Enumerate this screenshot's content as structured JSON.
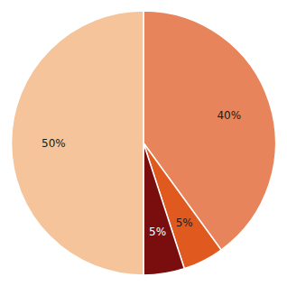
{
  "chart_data": {
    "type": "pie",
    "values": [
      40,
      5,
      5,
      50
    ],
    "value_labels": [
      "40%",
      "5%",
      "5%",
      "50%"
    ],
    "colors": [
      "#E8845C",
      "#E05A20",
      "#7A0E0E",
      "#F5C49A"
    ],
    "data_labels": true
  }
}
